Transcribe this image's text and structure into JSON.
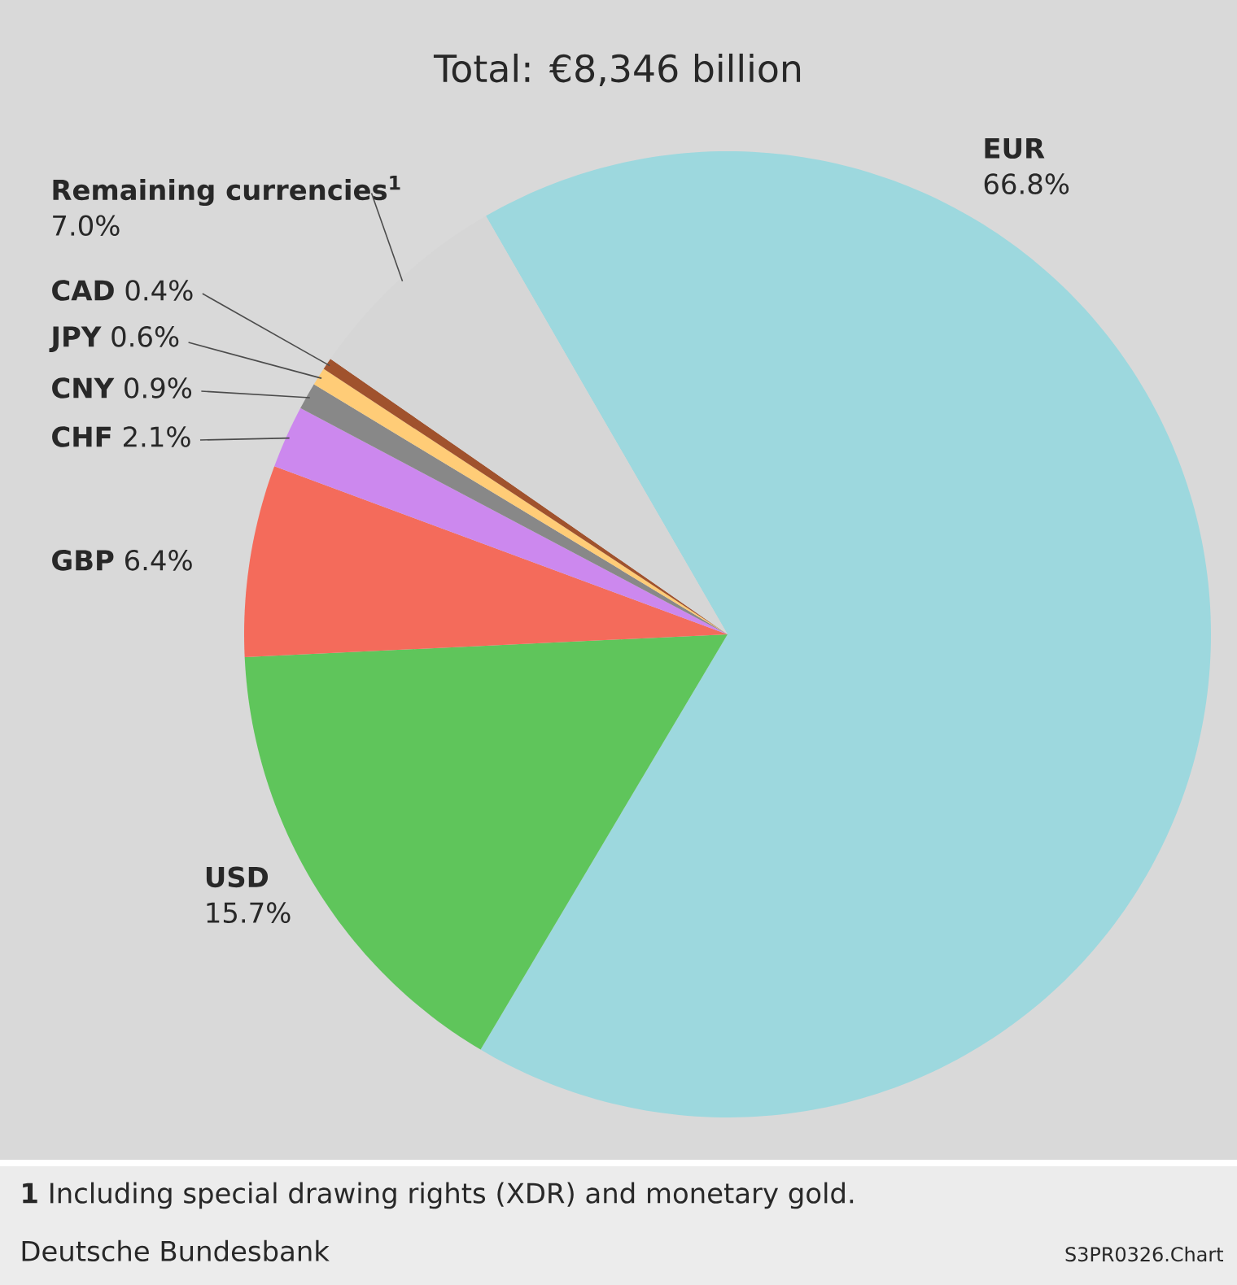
{
  "chart_data": {
    "type": "pie",
    "title": "Total: €8,346 billion",
    "categories": [
      "EUR",
      "USD",
      "GBP",
      "CHF",
      "CNY",
      "JPY",
      "CAD",
      "Remaining currencies$^{1}$"
    ],
    "values": [
      66.8,
      15.7,
      6.4,
      2.1,
      0.9,
      0.6,
      0.4,
      7.0
    ],
    "value_labels": [
      "66.8%",
      "15.7%",
      "6.4%",
      "2.1%",
      "0.9%",
      "0.6%",
      "0.4%",
      "7.0%"
    ],
    "colors": [
      "#9dd8de",
      "#5fc55b",
      "#f46b5b",
      "#cc88ee",
      "#888888",
      "#ffcc77",
      "#a0522d",
      "#d6d6d6"
    ],
    "annotations": [
      "**1** Including special drawing rights (XDR) and monetary gold.",
      "Deutsche Bundesbank",
      "S3PR0326.Chart"
    ]
  }
}
